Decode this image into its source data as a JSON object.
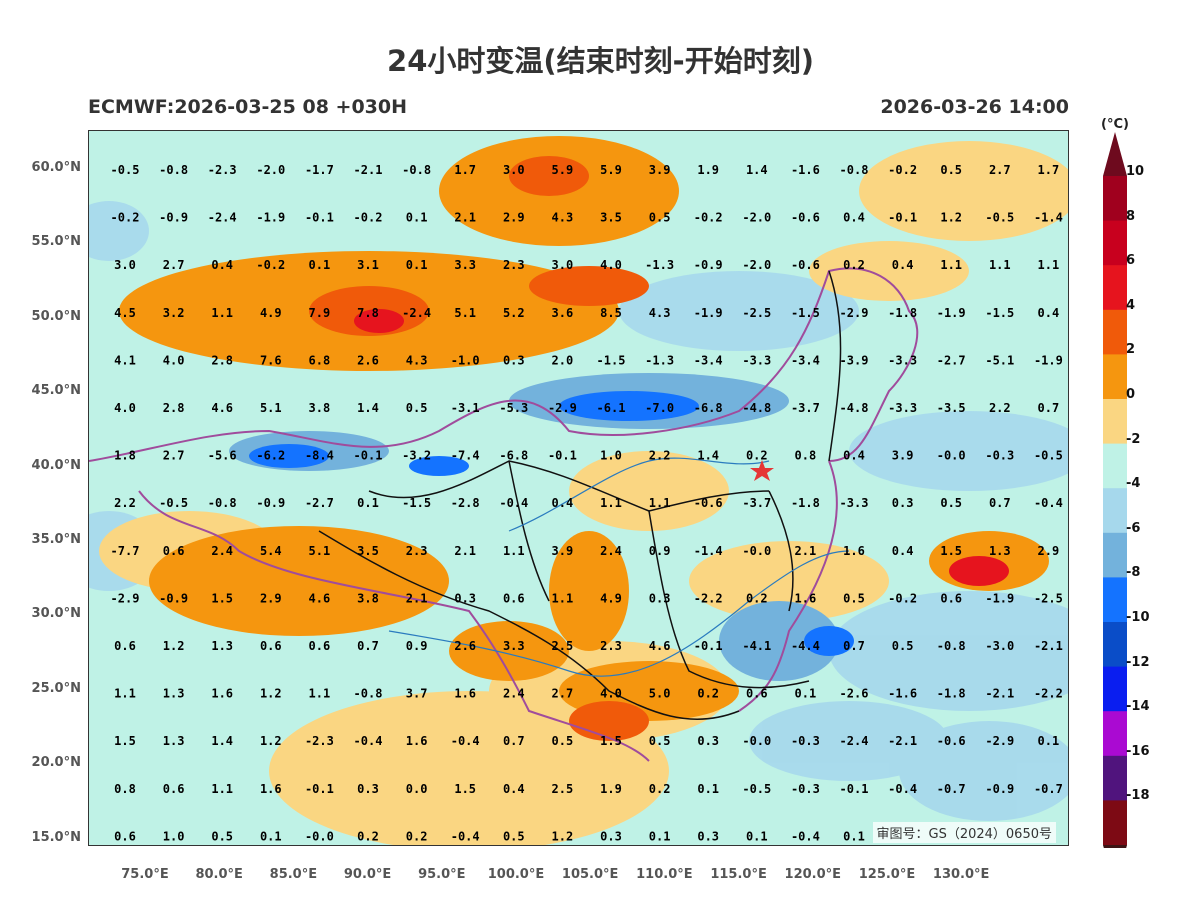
{
  "header": {
    "title": "24小时变温(结束时刻-开始时刻)",
    "model_run": "ECMWF:2026-03-25 08 +030H",
    "valid_time": "2026-03-26 14:00",
    "unit": "(°C)"
  },
  "axes": {
    "lat_labels": [
      "60.0°N",
      "55.0°N",
      "50.0°N",
      "45.0°N",
      "40.0°N",
      "35.0°N",
      "30.0°N",
      "25.0°N",
      "20.0°N",
      "15.0°N"
    ],
    "lon_labels": [
      "75.0°E",
      "80.0°E",
      "85.0°E",
      "90.0°E",
      "95.0°E",
      "100.0°E",
      "105.0°E",
      "110.0°E",
      "115.0°E",
      "120.0°E",
      "125.0°E",
      "130.0°E"
    ]
  },
  "stamp": "审图号：GS（2024）0650号",
  "marker_icon": "red-star-icon",
  "colorbar": {
    "labels": [
      "10",
      "8",
      "6",
      "4",
      "2",
      "0",
      "-2",
      "-4",
      "-6",
      "-8",
      "-10",
      "-12",
      "-14",
      "-16",
      "-18"
    ],
    "colors": [
      "#a0001e",
      "#c8001e",
      "#e6141e",
      "#f05a0a",
      "#f5960f",
      "#fad682",
      "#bff2e6",
      "#a6d8ec",
      "#73b2dc",
      "#1473ff",
      "#0a4dc8",
      "#0a1ef0",
      "#aa0ad2",
      "#50147d",
      "#7d0a14"
    ],
    "top_cap": "#6e0a1e",
    "bottom_cap": "#3c1414"
  },
  "grid_values": {
    "rows": [
      [
        "-0.5",
        "-0.8",
        "-2.3",
        "-2.0",
        "-1.7",
        "-2.1",
        "-0.8",
        "1.7",
        "3.0",
        "5.9",
        "5.9",
        "3.9",
        "1.9",
        "1.4",
        "-1.6",
        "-0.8",
        "-0.2",
        "0.5",
        "2.7",
        "1.7"
      ],
      [
        "-0.2",
        "-0.9",
        "-2.4",
        "-1.9",
        "-0.1",
        "-0.2",
        "0.1",
        "2.1",
        "2.9",
        "4.3",
        "3.5",
        "0.5",
        "-0.2",
        "-2.0",
        "-0.6",
        "0.4",
        "-0.1",
        "1.2",
        "-0.5",
        "-1.4"
      ],
      [
        "3.0",
        "2.7",
        "0.4",
        "-0.2",
        "0.1",
        "3.1",
        "0.1",
        "3.3",
        "2.3",
        "3.0",
        "4.0",
        "-1.3",
        "-0.9",
        "-2.0",
        "-0.6",
        "0.2",
        "0.4",
        "1.1",
        "1.1",
        "1.1"
      ],
      [
        "4.5",
        "3.2",
        "1.1",
        "4.9",
        "7.9",
        "7.8",
        "-2.4",
        "5.1",
        "5.2",
        "3.6",
        "8.5",
        "4.3",
        "-1.9",
        "-2.5",
        "-1.5",
        "-2.9",
        "-1.8",
        "-1.9",
        "-1.5",
        "0.4"
      ],
      [
        "4.1",
        "4.0",
        "2.8",
        "7.6",
        "6.8",
        "2.6",
        "4.3",
        "-1.0",
        "0.3",
        "2.0",
        "-1.5",
        "-1.3",
        "-3.4",
        "-3.3",
        "-3.4",
        "-3.9",
        "-3.3",
        "-2.7",
        "-5.1",
        "-1.9"
      ],
      [
        "4.0",
        "2.8",
        "4.6",
        "5.1",
        "3.8",
        "1.4",
        "0.5",
        "-3.1",
        "-5.3",
        "-2.9",
        "-6.1",
        "-7.0",
        "-6.8",
        "-4.8",
        "-3.7",
        "-4.8",
        "-3.3",
        "-3.5",
        "2.2",
        "0.7"
      ],
      [
        "1.8",
        "2.7",
        "-5.6",
        "-6.2",
        "-8.4",
        "-0.1",
        "-3.2",
        "-7.4",
        "-6.8",
        "-0.1",
        "1.0",
        "2.2",
        "1.4",
        "0.2",
        "0.8",
        "0.4",
        "3.9",
        "-0.0",
        "-0.3",
        "-0.5"
      ],
      [
        "2.2",
        "-0.5",
        "-0.8",
        "-0.9",
        "-2.7",
        "0.1",
        "-1.5",
        "-2.8",
        "-0.4",
        "0.4",
        "1.1",
        "1.1",
        "-0.6",
        "-3.7",
        "-1.8",
        "-3.3",
        "0.3",
        "0.5",
        "0.7",
        "-0.4"
      ],
      [
        "-7.7",
        "0.6",
        "2.4",
        "5.4",
        "5.1",
        "3.5",
        "2.3",
        "2.1",
        "1.1",
        "3.9",
        "2.4",
        "0.9",
        "-1.4",
        "-0.0",
        "2.1",
        "1.6",
        "0.4",
        "1.5",
        "1.3",
        "2.9"
      ],
      [
        "-2.9",
        "-0.9",
        "1.5",
        "2.9",
        "4.6",
        "3.8",
        "2.1",
        "0.3",
        "0.6",
        "1.1",
        "4.9",
        "0.3",
        "-2.2",
        "0.2",
        "1.6",
        "0.5",
        "-0.2",
        "0.6",
        "-1.9",
        "-2.5"
      ],
      [
        "0.6",
        "1.2",
        "1.3",
        "0.6",
        "0.6",
        "0.7",
        "0.9",
        "2.6",
        "3.3",
        "2.5",
        "2.3",
        "4.6",
        "-0.1",
        "-4.1",
        "-4.4",
        "0.7",
        "0.5",
        "-0.8",
        "-3.0",
        "-2.1"
      ],
      [
        "1.1",
        "1.3",
        "1.6",
        "1.2",
        "1.1",
        "-0.8",
        "3.7",
        "1.6",
        "2.4",
        "2.7",
        "4.0",
        "5.0",
        "0.2",
        "0.6",
        "0.1",
        "-2.6",
        "-1.6",
        "-1.8",
        "-2.1",
        "-2.2"
      ],
      [
        "1.5",
        "1.3",
        "1.4",
        "1.2",
        "-2.3",
        "-0.4",
        "1.6",
        "-0.4",
        "0.7",
        "0.5",
        "1.5",
        "0.5",
        "0.3",
        "-0.0",
        "-0.3",
        "-2.4",
        "-2.1",
        "-0.6",
        "-2.9",
        "0.1"
      ],
      [
        "0.8",
        "0.6",
        "1.1",
        "1.6",
        "-0.1",
        "0.3",
        "0.0",
        "1.5",
        "0.4",
        "2.5",
        "1.9",
        "0.2",
        "0.1",
        "-0.5",
        "-0.3",
        "-0.1",
        "-0.4",
        "-0.7",
        "-0.9",
        "-0.7"
      ],
      [
        "0.6",
        "1.0",
        "0.5",
        "0.1",
        "-0.0",
        "0.2",
        "0.2",
        "-0.4",
        "0.5",
        "1.2",
        "0.3",
        "0.1",
        "0.3",
        "0.1",
        "-0.4",
        "0.1",
        "",
        "",
        "",
        ""
      ]
    ]
  }
}
